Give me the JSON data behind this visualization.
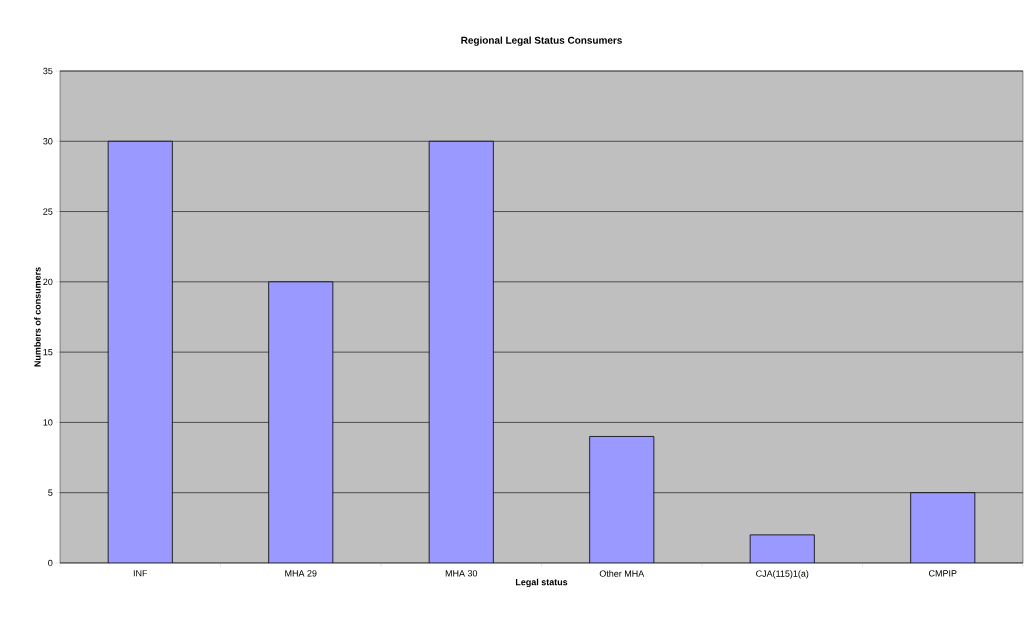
{
  "chart_data": {
    "type": "bar",
    "title": "Regional Legal Status Consumers",
    "xlabel": "Legal status",
    "ylabel": "Numbers of consumers",
    "categories": [
      "INF",
      "MHA 29",
      "MHA 30",
      "Other MHA",
      "CJA(115)1(a)",
      "CMPIP"
    ],
    "values": [
      30,
      20,
      30,
      9,
      2,
      5
    ],
    "color": "#9999ff",
    "ylim": [
      0,
      35
    ],
    "yticks": [
      0,
      5,
      10,
      15,
      20,
      25,
      30,
      35
    ],
    "grid": "y"
  }
}
